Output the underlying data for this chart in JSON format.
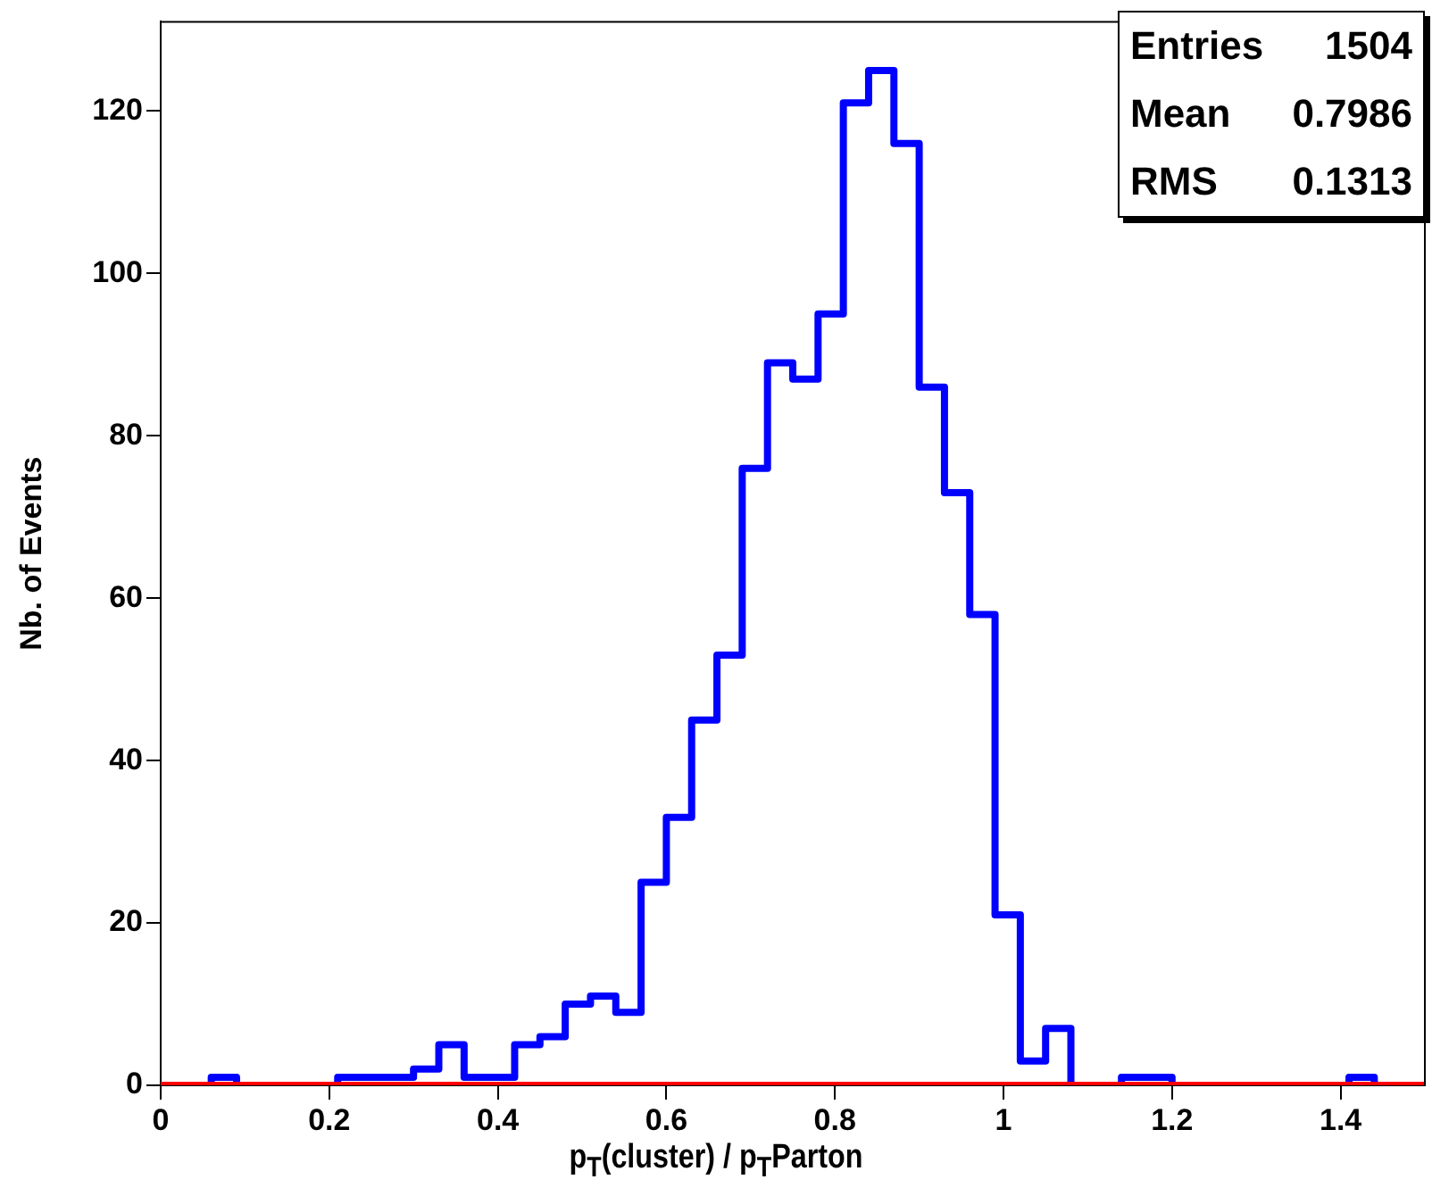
{
  "chart_data": {
    "type": "histogram",
    "xlabel": "p$_{T}$(cluster) / p$_{T}$Parton",
    "ylabel": "Nb. of Events",
    "bins": [
      0,
      0.03,
      0.06,
      0.09,
      0.12,
      0.15,
      0.18,
      0.21,
      0.24,
      0.27,
      0.3,
      0.33,
      0.36,
      0.39,
      0.42,
      0.45,
      0.48,
      0.51,
      0.54,
      0.57,
      0.6,
      0.63,
      0.66,
      0.69,
      0.72,
      0.75,
      0.78,
      0.81,
      0.84,
      0.87,
      0.9,
      0.93,
      0.96,
      0.99,
      1.02,
      1.05,
      1.08,
      1.11,
      1.14,
      1.17,
      1.2,
      1.23,
      1.26,
      1.29,
      1.32,
      1.35,
      1.38,
      1.41,
      1.44,
      1.47,
      1.5
    ],
    "series": [
      {
        "color": "#0000ff",
        "values": [
          0,
          0,
          1,
          0,
          0,
          0,
          0,
          1,
          1,
          1,
          2,
          5,
          1,
          1,
          5,
          6,
          10,
          11,
          9,
          25,
          33,
          45,
          53,
          76,
          89,
          87,
          95,
          121,
          125,
          116,
          86,
          73,
          58,
          21,
          3,
          7,
          0,
          0,
          1,
          1,
          0,
          0,
          0,
          0,
          0,
          0,
          0,
          1,
          0,
          0
        ]
      },
      {
        "color": "#ff0000",
        "values": [
          0,
          0,
          0,
          0,
          0,
          0,
          0,
          0,
          0,
          0,
          0,
          0,
          0,
          0,
          0,
          0,
          0,
          0,
          0,
          0,
          0,
          0,
          0,
          0,
          0,
          0,
          0,
          0,
          0,
          0,
          0,
          0,
          0,
          0,
          0,
          0,
          0,
          0,
          0,
          0,
          0,
          0,
          0,
          0,
          0,
          0,
          0,
          0,
          0,
          0
        ]
      }
    ],
    "xlim": [
      0,
      1.5
    ],
    "xticks": [
      0,
      0.2,
      0.4,
      0.6,
      0.8,
      1,
      1.2,
      1.4
    ],
    "ylim": [
      0,
      131
    ],
    "yticks": [
      0,
      20,
      40,
      60,
      80,
      100,
      120
    ],
    "annotations": [
      "Entries",
      "1504",
      "Mean",
      "0.7986",
      "RMS",
      "0.1313"
    ],
    "grid": false,
    "legend": false
  }
}
